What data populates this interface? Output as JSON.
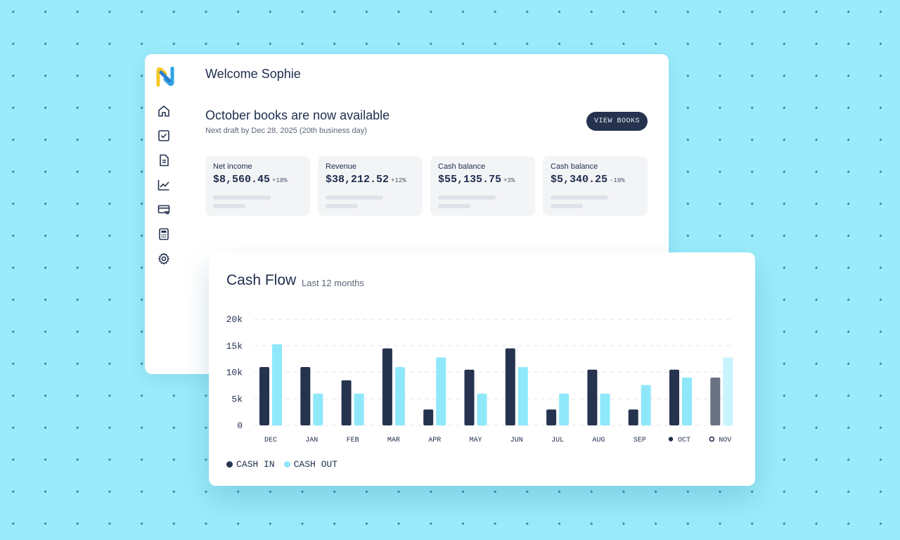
{
  "dashboard": {
    "welcome": "Welcome Sophie",
    "books_title": "October books are now available",
    "books_subtitle": "Next draft by Dec 28, 2025 (20th business day)",
    "view_books_label": "VIEW BOOKS",
    "nav_icons": [
      "home-icon",
      "checkbox-icon",
      "document-icon",
      "trend-chart-icon",
      "payments-icon",
      "calculator-icon",
      "gear-icon"
    ],
    "cards": [
      {
        "label": "Net income",
        "value": "$8,560.45",
        "change": "+10%"
      },
      {
        "label": "Revenue",
        "value": "$38,212.52",
        "change": "+12%"
      },
      {
        "label": "Cash balance",
        "value": "$55,135.75",
        "change": "+3%"
      },
      {
        "label": "Cash balance",
        "value": "$5,340.25",
        "change": "-10%"
      }
    ]
  },
  "cash_flow": {
    "title": "Cash Flow",
    "subtitle": "Last 12 months",
    "legend": [
      {
        "label": "CASH IN",
        "color": "#26334f"
      },
      {
        "label": "CASH OUT",
        "color": "#8ee8fa"
      }
    ]
  },
  "colors": {
    "navy": "#26334f",
    "cyan": "#8ee8fa",
    "projected_in": "#6a7282",
    "projected_out": "#c8f5fd",
    "background": "#9aebfb"
  },
  "chart_data": {
    "type": "bar",
    "categories": [
      "DEC",
      "JAN",
      "FEB",
      "MAR",
      "APR",
      "MAY",
      "JUN",
      "JUL",
      "AUG",
      "SEP",
      "OCT",
      "NOV"
    ],
    "series": [
      {
        "name": "CASH IN",
        "values": [
          11000,
          11000,
          8500,
          14500,
          3000,
          10500,
          14500,
          3000,
          10500,
          3000,
          10500,
          9000
        ]
      },
      {
        "name": "CASH OUT",
        "values": [
          15300,
          6000,
          6000,
          11000,
          12800,
          6000,
          11000,
          6000,
          6000,
          7600,
          9000,
          12800
        ]
      }
    ],
    "yticks": [
      "20k",
      "15k",
      "10k",
      "5k",
      "0"
    ],
    "ylim": [
      0,
      20000
    ],
    "grid": true,
    "legend": "bottom-left",
    "markers": {
      "OCT": "filled",
      "NOV": "hollow"
    }
  }
}
